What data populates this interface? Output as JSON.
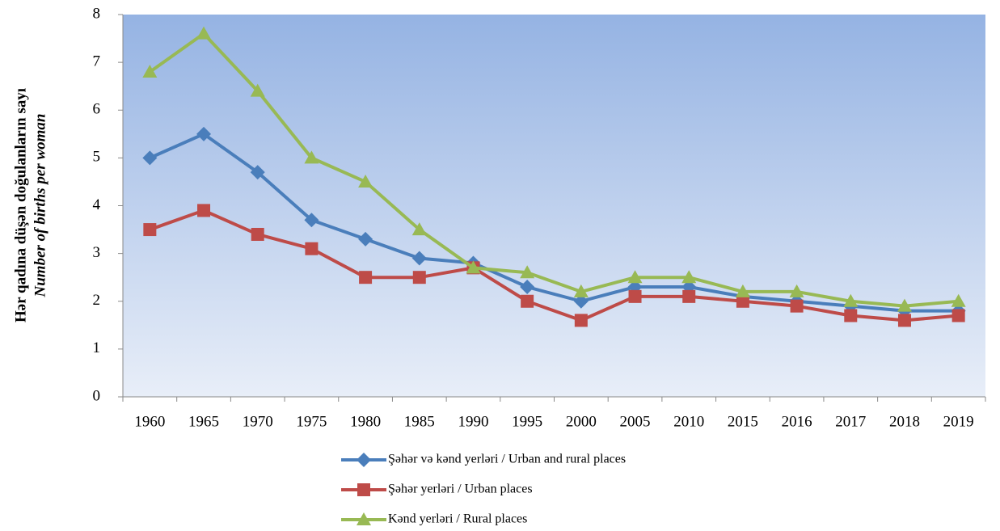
{
  "chart_data": {
    "type": "line",
    "ylabel": [
      "Hər qadına düşən doğulanların sayı",
      "Number of births per woman"
    ],
    "categories": [
      "1960",
      "1965",
      "1970",
      "1975",
      "1980",
      "1985",
      "1990",
      "1995",
      "2000",
      "2005",
      "2010",
      "2015",
      "2016",
      "2017",
      "2018",
      "2019"
    ],
    "series": [
      {
        "name": "Şəhər və kənd yerləri / Urban and rural places",
        "color": "#4a7ebb",
        "marker": "diamond",
        "values": [
          5.0,
          5.5,
          4.7,
          3.7,
          3.3,
          2.9,
          2.8,
          2.3,
          2.0,
          2.3,
          2.3,
          2.1,
          2.0,
          1.9,
          1.8,
          1.8
        ]
      },
      {
        "name": "Şəhər yerləri / Urban places",
        "color": "#be4b48",
        "marker": "square",
        "values": [
          3.5,
          3.9,
          3.4,
          3.1,
          2.5,
          2.5,
          2.7,
          2.0,
          1.6,
          2.1,
          2.1,
          2.0,
          1.9,
          1.7,
          1.6,
          1.7
        ]
      },
      {
        "name": "Kənd yerləri / Rural places",
        "color": "#98b954",
        "marker": "triangle",
        "values": [
          6.8,
          7.6,
          6.4,
          5.0,
          4.5,
          3.5,
          2.7,
          2.6,
          2.2,
          2.5,
          2.5,
          2.2,
          2.2,
          2.0,
          1.9,
          2.0
        ]
      }
    ],
    "ylim": [
      0,
      8
    ],
    "yticks": [
      0,
      1,
      2,
      3,
      4,
      5,
      6,
      7,
      8
    ],
    "grid": false,
    "legend": "bottom"
  }
}
